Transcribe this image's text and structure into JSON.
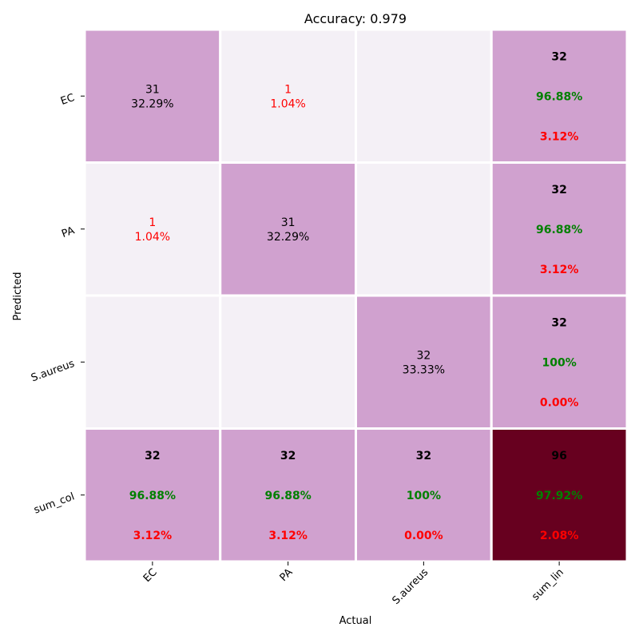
{
  "chart_data": {
    "type": "heatmap",
    "title": "Accuracy: 0.979",
    "xlabel": "Actual",
    "ylabel": "Predicted",
    "col_labels": [
      "EC",
      "PA",
      "S.aureus",
      "sum_lin"
    ],
    "row_labels": [
      "EC",
      "PA",
      "S.aureus",
      "sum_col"
    ],
    "cells": [
      [
        {
          "kind": "value",
          "count": "31",
          "pct": "32.29%",
          "color": "#d0a1cf",
          "text_color": "#000000"
        },
        {
          "kind": "value",
          "count": "1",
          "pct": "1.04%",
          "color": "#f4f0f6",
          "text_color": "#ff0000"
        },
        {
          "kind": "empty",
          "color": "#f4f0f6"
        },
        {
          "kind": "summary",
          "total": "32",
          "correct_pct": "96.88%",
          "error_pct": "3.12%",
          "color": "#d0a1cf",
          "text_color": "#000000"
        }
      ],
      [
        {
          "kind": "value",
          "count": "1",
          "pct": "1.04%",
          "color": "#f4f0f6",
          "text_color": "#ff0000"
        },
        {
          "kind": "value",
          "count": "31",
          "pct": "32.29%",
          "color": "#d0a1cf",
          "text_color": "#000000"
        },
        {
          "kind": "empty",
          "color": "#f4f0f6"
        },
        {
          "kind": "summary",
          "total": "32",
          "correct_pct": "96.88%",
          "error_pct": "3.12%",
          "color": "#d0a1cf",
          "text_color": "#000000"
        }
      ],
      [
        {
          "kind": "empty",
          "color": "#f4f0f6"
        },
        {
          "kind": "empty",
          "color": "#f4f0f6"
        },
        {
          "kind": "value",
          "count": "32",
          "pct": "33.33%",
          "color": "#d0a1cf",
          "text_color": "#000000"
        },
        {
          "kind": "summary",
          "total": "32",
          "correct_pct": "100%",
          "error_pct": "0.00%",
          "color": "#d0a1cf",
          "text_color": "#000000"
        }
      ],
      [
        {
          "kind": "summary",
          "total": "32",
          "correct_pct": "96.88%",
          "error_pct": "3.12%",
          "color": "#d0a1cf",
          "text_color": "#000000"
        },
        {
          "kind": "summary",
          "total": "32",
          "correct_pct": "96.88%",
          "error_pct": "3.12%",
          "color": "#d0a1cf",
          "text_color": "#000000"
        },
        {
          "kind": "summary",
          "total": "32",
          "correct_pct": "100%",
          "error_pct": "0.00%",
          "color": "#d0a1cf",
          "text_color": "#000000"
        },
        {
          "kind": "summary",
          "total": "96",
          "correct_pct": "97.92%",
          "error_pct": "2.08%",
          "color": "#67001f",
          "text_color": "#000000"
        }
      ]
    ],
    "colors": {
      "correct_text": "#008000",
      "error_text": "#ff0000",
      "cell_border": "#ffffff"
    },
    "grid": false,
    "legend": "none"
  }
}
